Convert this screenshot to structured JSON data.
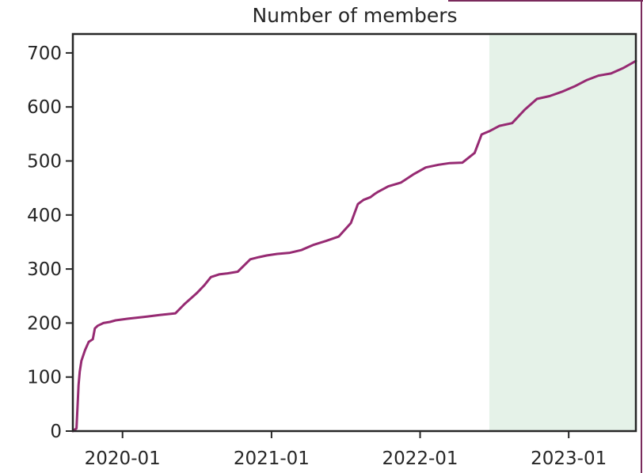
{
  "chart_data": {
    "type": "line",
    "title": "Number of members",
    "xlabel": "",
    "ylabel": "",
    "x_tick_labels": [
      "2020-01",
      "2021-01",
      "2022-01",
      "2023-01"
    ],
    "y_ticks": [
      0,
      100,
      200,
      300,
      400,
      500,
      600,
      700
    ],
    "xlim": [
      "2019-09-01",
      "2023-06-15"
    ],
    "ylim": [
      0,
      735
    ],
    "grid": false,
    "legend": "none",
    "highlight_region": {
      "x_start": "2022-06-20",
      "x_end": "2023-06-15",
      "color": "#e5f2e8"
    },
    "series": [
      {
        "color": "#962a72",
        "x": [
          "2019-09-01",
          "2019-09-10",
          "2019-09-15",
          "2019-09-18",
          "2019-09-22",
          "2019-10-01",
          "2019-10-10",
          "2019-10-20",
          "2019-10-25",
          "2019-11-01",
          "2019-11-15",
          "2019-12-01",
          "2019-12-15",
          "2020-01-15",
          "2020-03-01",
          "2020-04-01",
          "2020-05-10",
          "2020-06-01",
          "2020-07-01",
          "2020-07-20",
          "2020-08-05",
          "2020-08-25",
          "2020-09-15",
          "2020-10-10",
          "2020-11-10",
          "2020-12-01",
          "2020-12-20",
          "2021-01-15",
          "2021-02-15",
          "2021-03-15",
          "2021-04-15",
          "2021-05-15",
          "2021-06-15",
          "2021-07-15",
          "2021-08-01",
          "2021-08-15",
          "2021-09-01",
          "2021-09-10",
          "2021-09-20",
          "2021-10-15",
          "2021-11-15",
          "2021-12-15",
          "2022-01-15",
          "2022-02-15",
          "2022-03-15",
          "2022-04-15",
          "2022-05-15",
          "2022-06-01",
          "2022-06-10",
          "2022-06-20",
          "2022-07-15",
          "2022-08-15",
          "2022-09-15",
          "2022-10-15",
          "2022-11-15",
          "2022-12-15",
          "2023-01-15",
          "2023-02-15",
          "2023-03-15",
          "2023-04-15",
          "2023-05-15",
          "2023-06-15"
        ],
        "y": [
          0,
          5,
          85,
          110,
          130,
          150,
          165,
          170,
          190,
          195,
          200,
          202,
          205,
          208,
          212,
          215,
          218,
          235,
          255,
          270,
          285,
          290,
          292,
          295,
          318,
          322,
          325,
          328,
          330,
          335,
          345,
          352,
          360,
          385,
          420,
          428,
          433,
          438,
          443,
          453,
          460,
          475,
          488,
          493,
          496,
          497,
          515,
          549,
          552,
          555,
          565,
          570,
          595,
          615,
          620,
          628,
          638,
          650,
          658,
          662,
          672,
          685
        ]
      }
    ]
  }
}
